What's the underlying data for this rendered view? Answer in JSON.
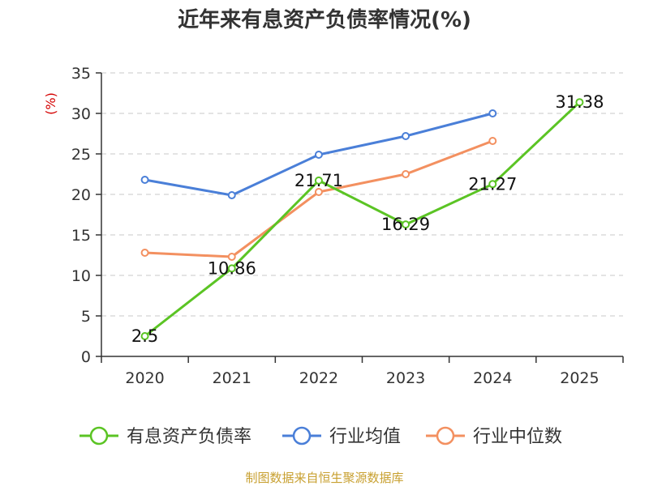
{
  "chart_data": {
    "type": "line",
    "title": "近年来有息资产负债率情况(%)",
    "unit": "(%)",
    "categories": [
      "2020",
      "2021",
      "2022",
      "2023",
      "2024",
      "2025"
    ],
    "ylim": [
      0,
      35
    ],
    "yticks": [
      0,
      5,
      10,
      15,
      20,
      25,
      30,
      35
    ],
    "grid": true,
    "legend_position": "bottom",
    "series": [
      {
        "name": "有息资产负债率",
        "color": "#5bc424",
        "values": [
          2.5,
          10.86,
          21.71,
          16.29,
          21.27,
          31.38
        ],
        "labels": [
          "2.5",
          "10.86",
          "21.71",
          "16.29",
          "21.27",
          "31.38"
        ]
      },
      {
        "name": "行业均值",
        "color": "#4a7fd8",
        "values": [
          21.8,
          19.9,
          24.9,
          27.2,
          30.0,
          null
        ]
      },
      {
        "name": "行业中位数",
        "color": "#f39060",
        "values": [
          12.8,
          12.3,
          20.3,
          22.5,
          26.6,
          null
        ]
      }
    ],
    "source": "制图数据来自恒生聚源数据库"
  }
}
